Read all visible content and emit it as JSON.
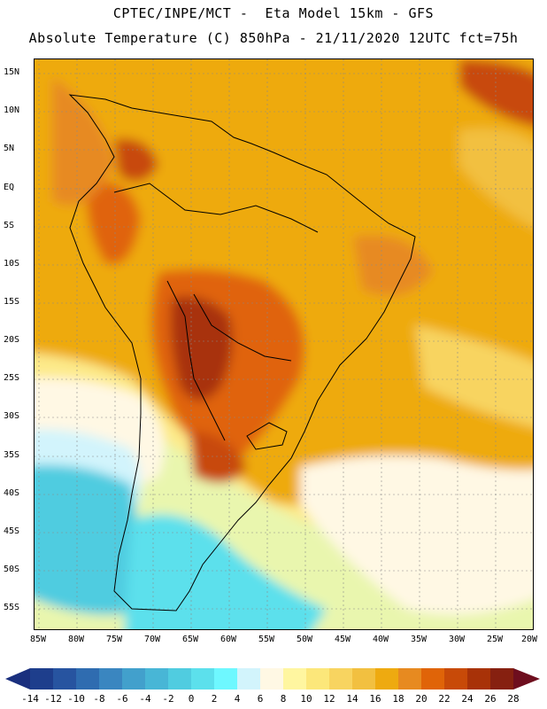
{
  "header": {
    "line1": "CPTEC/INPE/MCT -  Eta Model 15km - GFS",
    "line2": "Absolute Temperature (C) 850hPa - 21/11/2020 12UTC fct=75h"
  },
  "lat_labels": [
    "15N",
    "10N",
    "5N",
    "EQ",
    "5S",
    "10S",
    "15S",
    "20S",
    "25S",
    "30S",
    "35S",
    "40S",
    "45S",
    "50S",
    "55S"
  ],
  "lon_labels": [
    "85W",
    "80W",
    "75W",
    "70W",
    "65W",
    "60W",
    "55W",
    "50W",
    "45W",
    "40W",
    "35W",
    "30W",
    "25W",
    "20W"
  ],
  "colorbar": {
    "labels": [
      "-14",
      "-12",
      "-10",
      "-8",
      "-6",
      "-4",
      "-2",
      "0",
      "2",
      "4",
      "6",
      "8",
      "10",
      "12",
      "14",
      "16",
      "18",
      "20",
      "22",
      "24",
      "26",
      "28"
    ],
    "colors": [
      "#1e3e8c",
      "#2754a0",
      "#2f6cb0",
      "#3a86c0",
      "#42a0cc",
      "#48b6d6",
      "#50cce0",
      "#5ce0ec",
      "#6ef8ff",
      "#d2f4fc",
      "#fff8e4",
      "#fff6a0",
      "#fce77a",
      "#f8d460",
      "#f2c040",
      "#eeaa10",
      "#e78a20",
      "#e06408",
      "#c84a08",
      "#a83208",
      "#862010"
    ],
    "left_arrow_color": "#1a2f7e",
    "right_arrow_color": "#6e0e1e"
  }
}
